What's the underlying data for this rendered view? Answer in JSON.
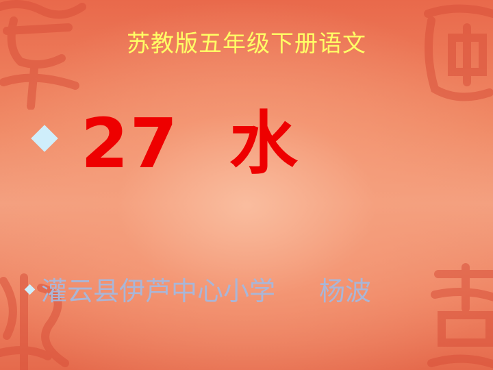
{
  "slide": {
    "title": "苏教版五年级下册语文",
    "lesson": "27  水",
    "school": "灌云县伊芦中心小学",
    "teacher": "杨波"
  },
  "colors": {
    "title": "#ffff66",
    "lesson": "#ee0000",
    "author": "#a9b6d8",
    "bullet": "#cfeefb"
  }
}
